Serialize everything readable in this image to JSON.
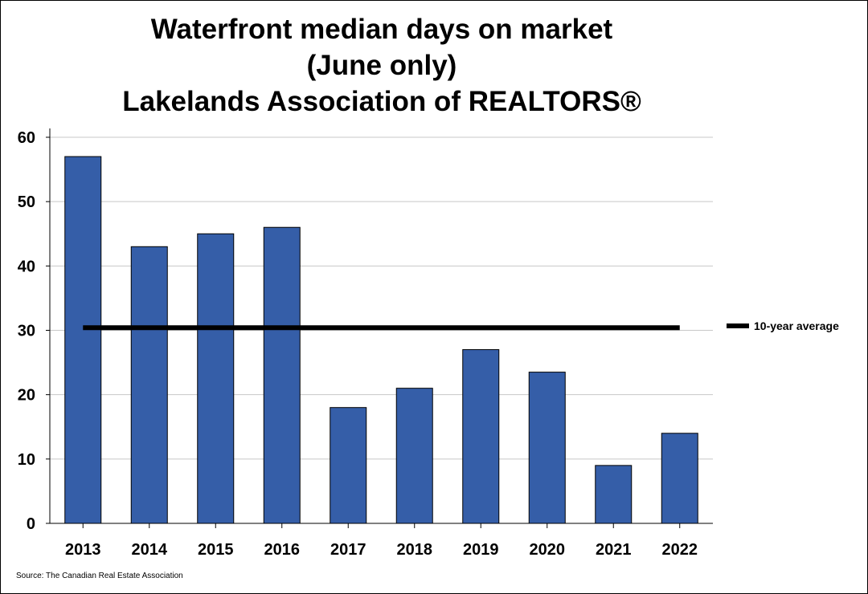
{
  "chart_data": {
    "type": "bar",
    "title_lines": [
      "Waterfront median days on market",
      "(June only)",
      "Lakelands Association of REALTORS®"
    ],
    "categories": [
      "2013",
      "2014",
      "2015",
      "2016",
      "2017",
      "2018",
      "2019",
      "2020",
      "2021",
      "2022"
    ],
    "values": [
      57,
      43,
      45,
      46,
      18,
      21,
      27,
      23.5,
      9,
      14
    ],
    "average_line": {
      "name": "10-year average",
      "value": 30.4
    },
    "ylim": [
      0,
      60
    ],
    "yticks": [
      0,
      10,
      20,
      30,
      40,
      50,
      60
    ],
    "grid": true,
    "legend_position": "right",
    "bar_color": "#355EA8",
    "line_color": "#000000",
    "source": "Source: The Canadian Real Estate Association"
  }
}
